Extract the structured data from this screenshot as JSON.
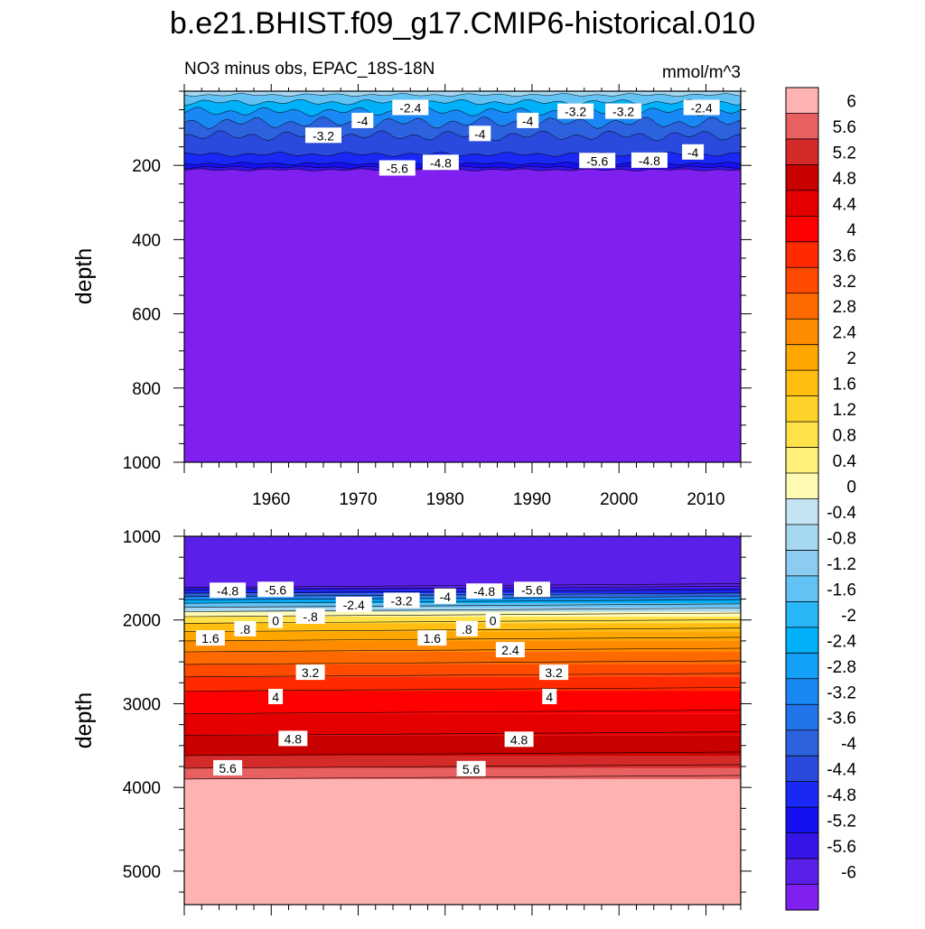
{
  "title": "b.e21.BHIST.f09_g17.CMIP6-historical.010",
  "chart_data": [
    {
      "type": "contour",
      "panel": "upper",
      "subtitle_left": "NO3 minus obs, EPAC_18S-18N",
      "subtitle_right": "mmol/m^3",
      "ylabel": "depth",
      "xlim": [
        1950,
        2014
      ],
      "ylim": [
        0,
        1000
      ],
      "y_reversed": true,
      "x_ticks": [
        "1960",
        "1970",
        "1980",
        "1990",
        "2000",
        "2010"
      ],
      "y_ticks": [
        "200",
        "400",
        "600",
        "800",
        "1000"
      ],
      "contour_labels": [
        {
          "text": "-3.2",
          "year": 1966,
          "depth": 120
        },
        {
          "text": "-4",
          "year": 1970.5,
          "depth": 80
        },
        {
          "text": "-2.4",
          "year": 1976,
          "depth": 45
        },
        {
          "text": "-4.8",
          "year": 1979.5,
          "depth": 193
        },
        {
          "text": "-5.6",
          "year": 1974.5,
          "depth": 208
        },
        {
          "text": "-4",
          "year": 1984,
          "depth": 115
        },
        {
          "text": "-4",
          "year": 1989.5,
          "depth": 80
        },
        {
          "text": "-3.2",
          "year": 1995,
          "depth": 55
        },
        {
          "text": "-3.2",
          "year": 2000.5,
          "depth": 55
        },
        {
          "text": "-5.6",
          "year": 1997.5,
          "depth": 188
        },
        {
          "text": "-4.8",
          "year": 2003.5,
          "depth": 187
        },
        {
          "text": "-2.4",
          "year": 2009.5,
          "depth": 45
        },
        {
          "text": "-4",
          "year": 2008.5,
          "depth": 165
        }
      ]
    },
    {
      "type": "contour",
      "panel": "lower",
      "ylabel": "depth",
      "xlim": [
        1950,
        2014
      ],
      "ylim": [
        1000,
        5400
      ],
      "y_reversed": true,
      "y_ticks": [
        "1000",
        "2000",
        "3000",
        "4000",
        "5000"
      ],
      "contour_labels": [
        {
          "text": "-4.8",
          "year": 1955,
          "depth": 1650
        },
        {
          "text": "-5.6",
          "year": 1960.5,
          "depth": 1640
        },
        {
          "text": "-2.4",
          "year": 1969.5,
          "depth": 1820
        },
        {
          "text": "-3.2",
          "year": 1975,
          "depth": 1770
        },
        {
          "text": "-4",
          "year": 1980,
          "depth": 1720
        },
        {
          "text": "-4.8",
          "year": 1984.5,
          "depth": 1660
        },
        {
          "text": "-5.6",
          "year": 1990,
          "depth": 1640
        },
        {
          "text": "-.8",
          "year": 1964.5,
          "depth": 1960
        },
        {
          "text": "0",
          "year": 1960.5,
          "depth": 2010
        },
        {
          "text": ".8",
          "year": 1957,
          "depth": 2110
        },
        {
          "text": "1.6",
          "year": 1953,
          "depth": 2220
        },
        {
          "text": "1.6",
          "year": 1978.5,
          "depth": 2220
        },
        {
          "text": ".8",
          "year": 1982.5,
          "depth": 2110
        },
        {
          "text": "0",
          "year": 1985.5,
          "depth": 2010
        },
        {
          "text": "2.4",
          "year": 1987.5,
          "depth": 2360
        },
        {
          "text": "3.2",
          "year": 1964.5,
          "depth": 2630
        },
        {
          "text": "3.2",
          "year": 1992.5,
          "depth": 2630
        },
        {
          "text": "4",
          "year": 1960.5,
          "depth": 2920
        },
        {
          "text": "4",
          "year": 1992,
          "depth": 2920
        },
        {
          "text": "4.8",
          "year": 1962.5,
          "depth": 3420
        },
        {
          "text": "4.8",
          "year": 1988.5,
          "depth": 3430
        },
        {
          "text": "5.6",
          "year": 1955,
          "depth": 3770
        },
        {
          "text": "5.6",
          "year": 1983,
          "depth": 3780
        }
      ]
    }
  ],
  "colorbar": {
    "labels": [
      "6",
      "5.6",
      "5.2",
      "4.8",
      "4.4",
      "4",
      "3.6",
      "3.2",
      "2.8",
      "2.4",
      "2",
      "1.6",
      "1.2",
      "0.8",
      "0.4",
      "0",
      "-0.4",
      "-0.8",
      "-1.2",
      "-1.6",
      "-2",
      "-2.4",
      "-2.8",
      "-3.2",
      "-3.6",
      "-4",
      "-4.4",
      "-4.8",
      "-5.2",
      "-5.6",
      "-6"
    ],
    "colors": [
      "#ffb2b2",
      "#e86060",
      "#d42a2a",
      "#c80000",
      "#e40000",
      "#ff0000",
      "#ff2a00",
      "#ff4a00",
      "#ff6a00",
      "#ff8c00",
      "#ffa600",
      "#ffbe10",
      "#ffd22a",
      "#ffe24a",
      "#fff07a",
      "#fffab4",
      "#c4e4f4",
      "#a6d8f2",
      "#8cccf0",
      "#62c2f4",
      "#28b6f6",
      "#00b0f8",
      "#12a0f8",
      "#1a88f4",
      "#2274ea",
      "#2c62de",
      "#2a4ade",
      "#1a28f6",
      "#1410f0",
      "#3614e8",
      "#5a20ea",
      "#8020f0"
    ]
  },
  "field_colors": {
    "deep_negative": "#8020f0",
    "deep_positive": "#ffb2b2"
  }
}
